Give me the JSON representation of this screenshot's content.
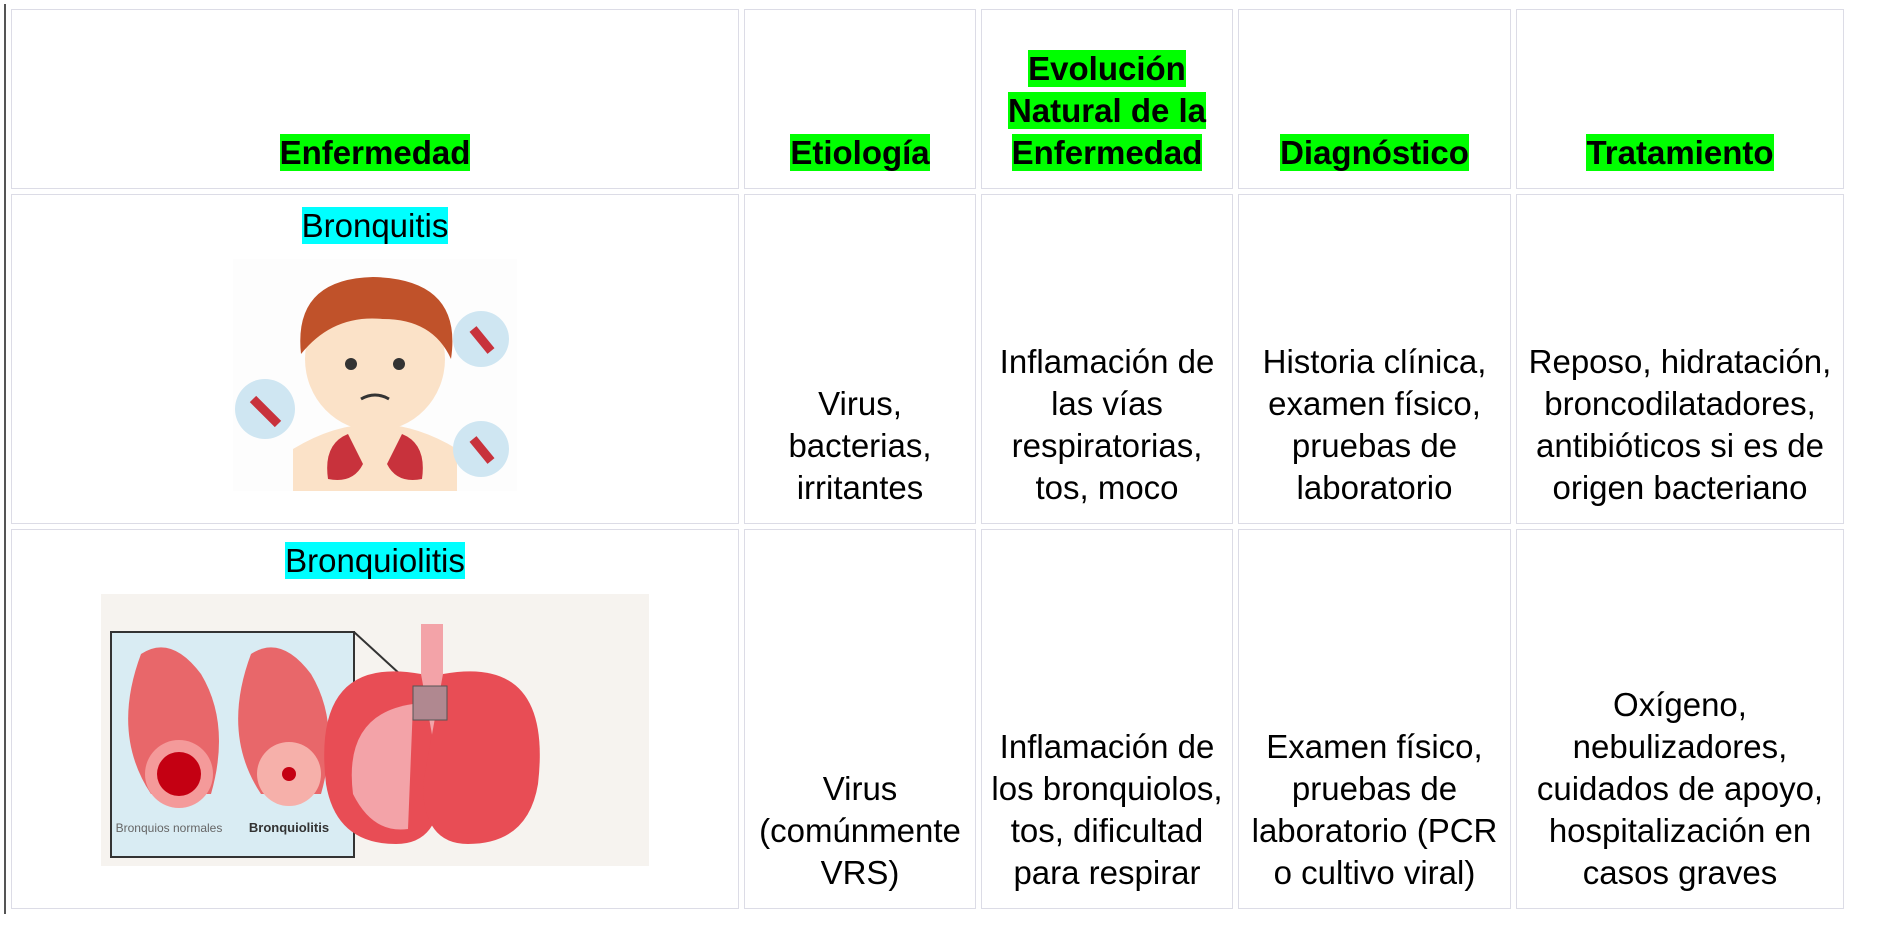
{
  "table": {
    "header": [
      "Enfermedad",
      "Etiología",
      "Evolución Natural de la Enfermedad",
      "Diagnóstico",
      "Tratamiento"
    ],
    "rows": [
      [
        "Bronquitis",
        "Virus, bacterias, irritantes",
        "Inflamación de las vías respiratorias, tos, moco",
        "Historia clínica, examen físico, pruebas de laboratorio",
        "Reposo, hidratación, broncodilatadores, antibióticos si es de origen bacteriano"
      ],
      [
        "Bronquiolitis",
        "Virus (comúnmente VRS)",
        "Inflamación de los bronquiolos, tos, dificultad para respirar",
        "Examen físico, pruebas de laboratorio (PCR o cultivo viral)",
        "Oxígeno, nebulizadores, cuidados de apoyo, hospitalización en casos graves"
      ]
    ]
  },
  "figure_labels": [
    "Bronquios normales",
    "Bronquiolitis"
  ]
}
